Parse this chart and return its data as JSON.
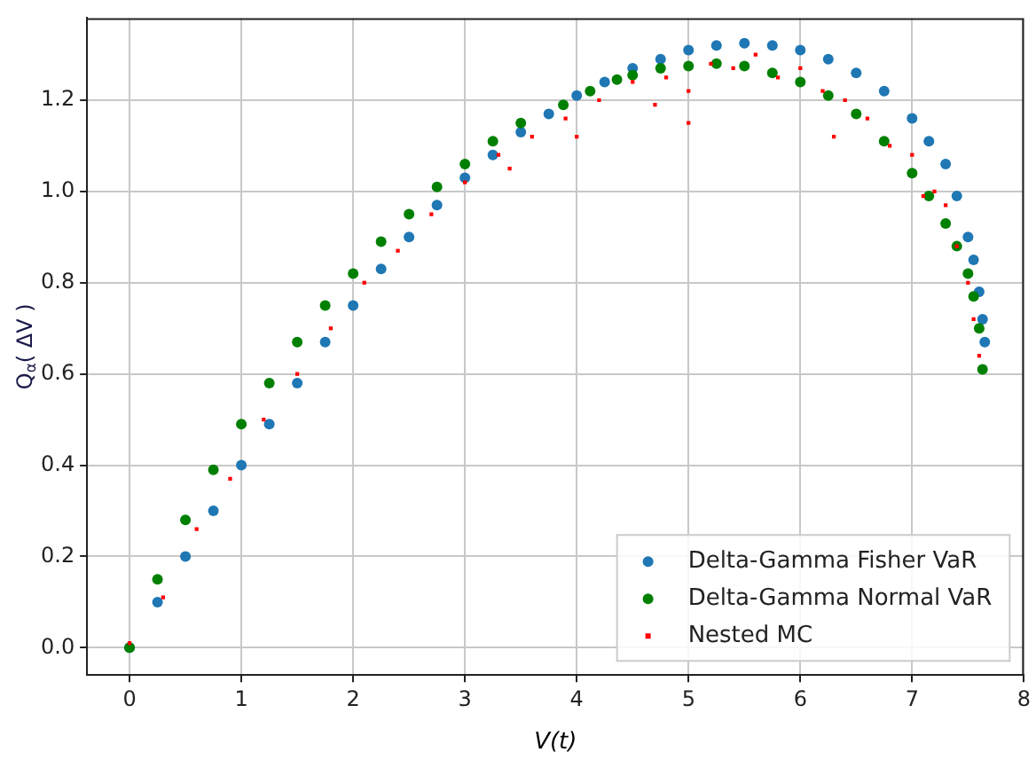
{
  "chart_data": {
    "type": "scatter",
    "xlabel": "V(t)",
    "ylabel": "Q$_{α}$( ΔV )",
    "xlim": [
      -0.38,
      8
    ],
    "ylim": [
      -0.06,
      1.38
    ],
    "xticks": [
      0,
      1,
      2,
      3,
      4,
      5,
      6,
      7,
      8
    ],
    "yticks": [
      {
        "value": 0,
        "label": "0.0"
      },
      0.2,
      0.4,
      0.6,
      0.8,
      {
        "value": 1,
        "label": "1.0"
      },
      1.2
    ],
    "grid": true,
    "legend": "bottom right",
    "marker": "circle",
    "series": [
      {
        "name": "Delta-Gamma Fisher VaR",
        "color": "#1f77b4",
        "x": [
          0,
          0.25,
          0.5,
          0.75,
          1,
          1.25,
          1.5,
          1.75,
          2,
          2.25,
          2.5,
          2.75,
          3,
          3.25,
          3.5,
          3.75,
          4,
          4.25,
          4.5,
          4.75,
          5,
          5.25,
          5.5,
          5.75,
          6,
          6.25,
          6.5,
          6.75,
          7,
          7.15,
          7.3,
          7.4,
          7.5,
          7.55,
          7.6,
          7.63,
          7.65
        ],
        "values": [
          0,
          0.1,
          0.2,
          0.3,
          0.4,
          0.49,
          0.58,
          0.67,
          0.75,
          0.83,
          0.9,
          0.97,
          1.03,
          1.08,
          1.13,
          1.17,
          1.21,
          1.24,
          1.27,
          1.29,
          1.31,
          1.32,
          1.325,
          1.32,
          1.31,
          1.29,
          1.26,
          1.22,
          1.16,
          1.11,
          1.06,
          0.99,
          0.9,
          0.85,
          0.78,
          0.72,
          0.67
        ]
      },
      {
        "name": "Delta-Gamma Normal VaR",
        "color": "#008000",
        "x": [
          0,
          0.25,
          0.5,
          0.75,
          1,
          1.25,
          1.5,
          1.75,
          2,
          2.25,
          2.5,
          2.75,
          3,
          3.25,
          3.5,
          3.88,
          4.12,
          4.36,
          4.5,
          4.75,
          5,
          5.25,
          5.5,
          5.75,
          6,
          6.25,
          6.5,
          6.75,
          7,
          7.15,
          7.3,
          7.4,
          7.5,
          7.55,
          7.6,
          7.63
        ],
        "values": [
          0,
          0.15,
          0.28,
          0.39,
          0.49,
          0.58,
          0.67,
          0.75,
          0.82,
          0.89,
          0.95,
          1.01,
          1.06,
          1.11,
          1.15,
          1.19,
          1.22,
          1.245,
          1.255,
          1.27,
          1.275,
          1.28,
          1.275,
          1.26,
          1.24,
          1.21,
          1.17,
          1.11,
          1.04,
          0.99,
          0.93,
          0.88,
          0.82,
          0.77,
          0.7,
          0.61
        ]
      },
      {
        "name": "Nested MC",
        "color": "#ff0000",
        "marker": "square",
        "x": [
          0,
          0.3,
          0.6,
          0.9,
          1.2,
          1.5,
          1.8,
          2.1,
          2.4,
          2.7,
          3,
          3.3,
          3.6,
          3.9,
          4.2,
          4.5,
          4.8,
          5,
          5.2,
          5.4,
          5.6,
          5.8,
          6,
          6.2,
          6.4,
          6.6,
          6.8,
          7,
          7.2,
          7.3,
          7.4,
          7.5,
          7.55,
          7.6,
          4,
          5,
          6.3,
          7.1,
          3.4,
          4.7
        ],
        "values": [
          0.01,
          0.11,
          0.26,
          0.37,
          0.5,
          0.6,
          0.7,
          0.8,
          0.87,
          0.95,
          1.02,
          1.08,
          1.12,
          1.16,
          1.2,
          1.24,
          1.25,
          1.22,
          1.28,
          1.27,
          1.3,
          1.25,
          1.27,
          1.22,
          1.2,
          1.16,
          1.1,
          1.08,
          1,
          0.97,
          0.88,
          0.8,
          0.72,
          0.64,
          1.12,
          1.15,
          1.12,
          0.99,
          1.05,
          1.19
        ]
      }
    ]
  }
}
